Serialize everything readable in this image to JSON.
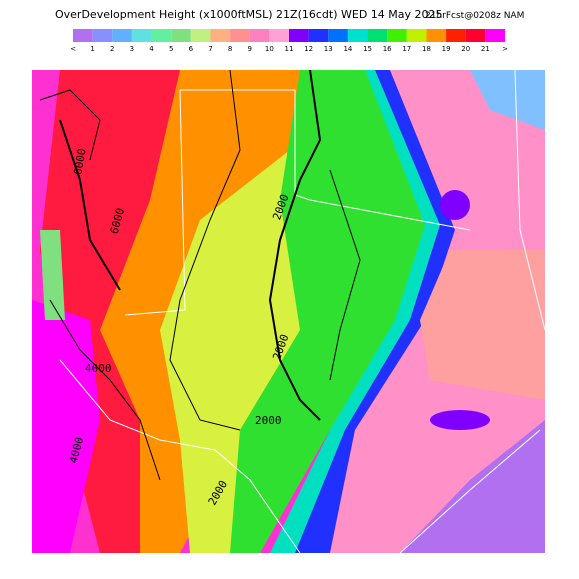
{
  "header": {
    "title": "OverDevelopment Height (x1000ftMSL) 21Z(16cdt) WED 14 May 2025",
    "run": "21hrFcst@0208z NAM"
  },
  "colorbar": {
    "labels": [
      "<",
      1,
      2,
      3,
      4,
      5,
      6,
      7,
      8,
      9,
      10,
      11,
      12,
      13,
      14,
      15,
      16,
      17,
      18,
      19,
      20,
      21,
      ">"
    ],
    "colors": [
      "#b070f0",
      "#8890ff",
      "#60b0ff",
      "#60e0e0",
      "#60f0a0",
      "#80e080",
      "#c0f080",
      "#ffb080",
      "#ff9090",
      "#ff80c0",
      "#ffa0d8",
      "#8000ff",
      "#2030ff",
      "#0070ff",
      "#00e0d0",
      "#00e070",
      "#40f000",
      "#c0f000",
      "#ff9000",
      "#ff2000",
      "#ff0030",
      "#ff00ff"
    ]
  },
  "contour_labels": [
    "6000",
    "6000",
    "2000",
    "2000",
    "2000",
    "4000",
    "4000",
    "2000"
  ]
}
